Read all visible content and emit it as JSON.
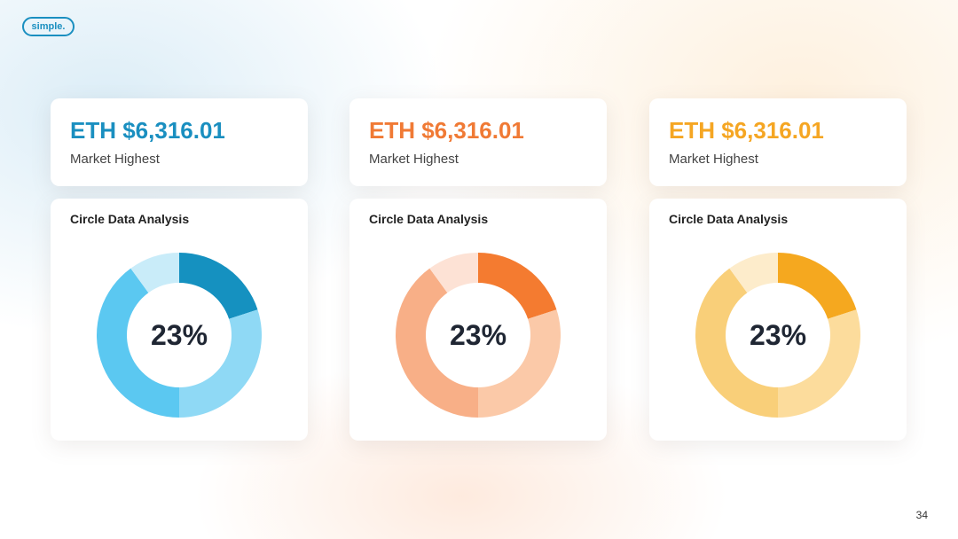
{
  "logo": "simple.",
  "page_number": "34",
  "cards": [
    {
      "price": "ETH $6,316.01",
      "caption": "Market Highest",
      "color": "#1a8fc0"
    },
    {
      "price": "ETH $6,316.01",
      "caption": "Market Highest",
      "color": "#f07a35"
    },
    {
      "price": "ETH $6,316.01",
      "caption": "Market Highest",
      "color": "#f5a623"
    }
  ],
  "chart_data": [
    {
      "type": "donut",
      "title": "Circle Data Analysis",
      "center_label": "23%",
      "values": [
        20,
        30,
        40,
        10
      ],
      "colors": [
        "#1591c0",
        "#8fd9f5",
        "#5bc8f1",
        "#c9ecf9"
      ]
    },
    {
      "type": "donut",
      "title": "Circle Data Analysis",
      "center_label": "23%",
      "values": [
        20,
        30,
        40,
        10
      ],
      "colors": [
        "#f47b30",
        "#fbc9a8",
        "#f8af87",
        "#fde2d5"
      ]
    },
    {
      "type": "donut",
      "title": "Circle Data Analysis",
      "center_label": "23%",
      "values": [
        20,
        30,
        40,
        10
      ],
      "colors": [
        "#f5a81f",
        "#fcdc9c",
        "#f9cf79",
        "#fdeccb"
      ]
    }
  ]
}
